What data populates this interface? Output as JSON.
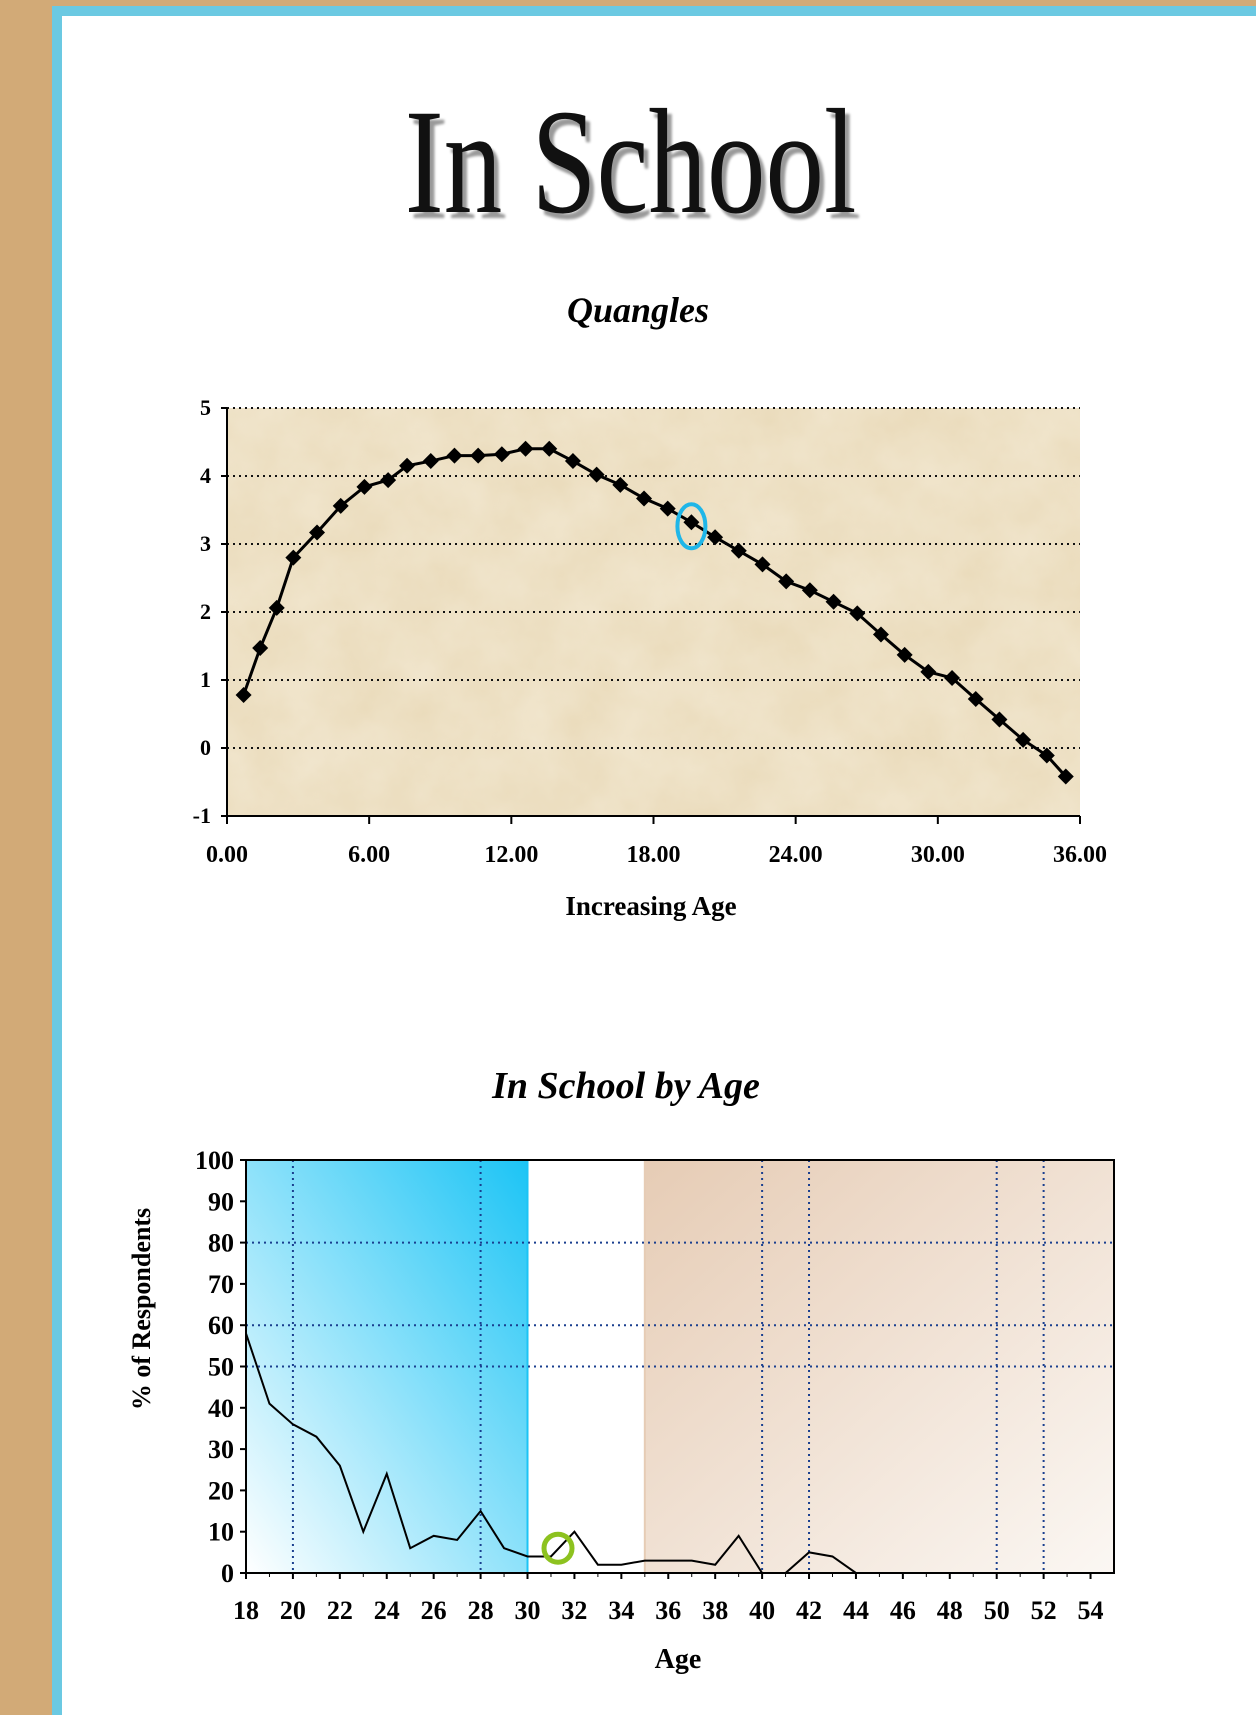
{
  "page": {
    "title": "In School"
  },
  "chart_data": [
    {
      "type": "line",
      "title": "Quangles",
      "xlabel": "Increasing Age",
      "ylabel": "",
      "xlim": [
        0,
        36
      ],
      "ylim": [
        -1,
        5
      ],
      "xticks": [
        "0.00",
        "6.00",
        "12.00",
        "18.00",
        "24.00",
        "30.00",
        "36.00"
      ],
      "yticks": [
        "-1",
        "0",
        "1",
        "2",
        "3",
        "4",
        "5"
      ],
      "grid": "horizontal dotted",
      "marker": "diamond",
      "highlight_index": 20,
      "highlight_color": "#1fb6e8",
      "x": [
        0.7,
        1.4,
        2.1,
        2.8,
        3.8,
        4.8,
        5.8,
        6.8,
        7.6,
        8.6,
        9.6,
        10.6,
        11.6,
        12.6,
        13.6,
        14.6,
        15.6,
        16.6,
        17.6,
        18.6,
        19.6,
        20.6,
        21.6,
        22.6,
        23.6,
        24.6,
        25.6,
        26.6,
        27.6,
        28.6,
        29.6,
        30.6,
        31.6,
        32.6,
        33.6,
        34.6,
        35.4
      ],
      "y": [
        0.78,
        1.47,
        2.06,
        2.8,
        3.17,
        3.56,
        3.84,
        3.94,
        4.15,
        4.22,
        4.3,
        4.3,
        4.32,
        4.4,
        4.4,
        4.22,
        4.02,
        3.87,
        3.67,
        3.52,
        3.32,
        3.1,
        2.9,
        2.7,
        2.45,
        2.32,
        2.15,
        1.98,
        1.67,
        1.37,
        1.12,
        1.03,
        0.72,
        0.42,
        0.12,
        -0.11,
        -0.42
      ]
    },
    {
      "type": "line",
      "title": "In School by Age",
      "xlabel": "Age",
      "ylabel": "% of Respondents",
      "xlim": [
        18,
        55
      ],
      "ylim": [
        0,
        100
      ],
      "xticks": [
        "18",
        "20",
        "22",
        "24",
        "26",
        "28",
        "30",
        "32",
        "34",
        "36",
        "38",
        "40",
        "42",
        "44",
        "46",
        "48",
        "50",
        "52",
        "54"
      ],
      "yticks": [
        "0",
        "10",
        "20",
        "30",
        "40",
        "50",
        "60",
        "70",
        "80",
        "90",
        "100"
      ],
      "bands": [
        {
          "from": 18,
          "to": 30,
          "color": "#1cc4f5"
        },
        {
          "from": 35,
          "to": 55,
          "color": "#e6ccb5"
        }
      ],
      "highlight_x": 31.3,
      "highlight_color": "#8dc21f",
      "x": [
        18,
        19,
        20,
        21,
        22,
        23,
        24,
        25,
        26,
        27,
        28,
        29,
        30,
        31,
        32,
        33,
        34,
        35,
        36,
        37,
        38,
        39,
        40,
        41,
        42,
        43,
        44,
        45,
        46,
        47,
        48,
        49,
        50,
        51,
        52,
        53,
        54,
        55
      ],
      "y": [
        58,
        41,
        36,
        33,
        26,
        10,
        24,
        6,
        9,
        8,
        15,
        6,
        4,
        4,
        10,
        2,
        2,
        3,
        3,
        3,
        2,
        9,
        0,
        0,
        5,
        4,
        0,
        0,
        0,
        0,
        0,
        0,
        0,
        0,
        0,
        0,
        0,
        0
      ]
    }
  ]
}
